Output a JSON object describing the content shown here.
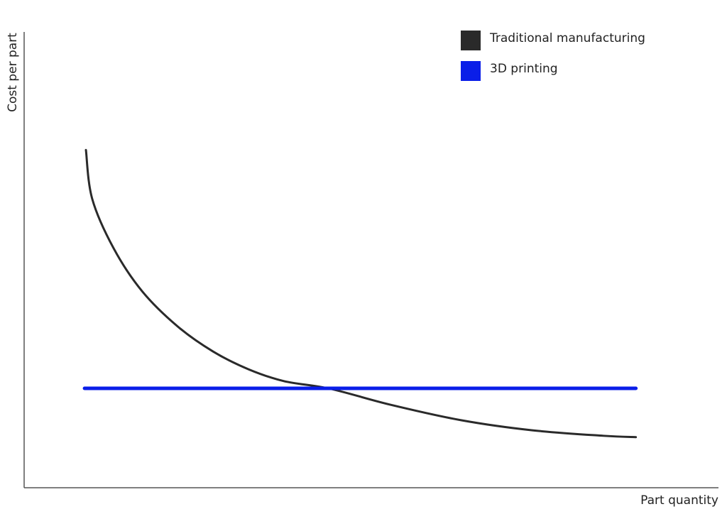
{
  "chart_data": {
    "type": "line",
    "x_label": "Part quantity",
    "y_label": "Cost per part",
    "xlim": [
      0,
      100
    ],
    "ylim": [
      0,
      100
    ],
    "grid": false,
    "legend": "top-right",
    "series": [
      {
        "name": "Traditional manufacturing",
        "color": "#2a2a2a",
        "x": [
          8.9,
          9.8,
          12.9,
          17.0,
          22.1,
          27.2,
          32.3,
          37.4,
          44.1,
          52.8,
          63.0,
          73.2,
          83.4,
          88.1
        ],
        "values": [
          74.1,
          63.4,
          52.5,
          43.1,
          35.4,
          29.9,
          26.0,
          23.4,
          21.7,
          18.2,
          14.8,
          12.6,
          11.4,
          11.1
        ]
      },
      {
        "name": "3D printing",
        "color": "#0a1ee8",
        "x": [
          8.7,
          88.1
        ],
        "values": [
          21.8,
          21.8
        ]
      }
    ]
  }
}
